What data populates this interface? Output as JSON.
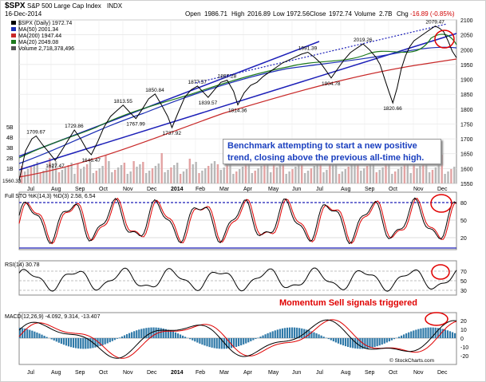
{
  "chart_data": {
    "type": "line",
    "symbol": "$SPX",
    "name": "S&P 500 Large Cap Index",
    "exchange": "INDX",
    "date": "16-Dec-2014",
    "ohlc": {
      "open_label": "Open",
      "open": "1986.71",
      "high_label": "High",
      "high": "2016.89",
      "low_label": "Low",
      "low": "1972.56",
      "close_label": "Close",
      "close": "1972.74",
      "volume_label": "Volume",
      "volume": "2.7B",
      "chg_label": "Chg",
      "chg": "-16.89 (-0.85%)"
    },
    "legend": [
      {
        "label": "$SPX (Daily) 1972.74",
        "color": "#000000"
      },
      {
        "label": "MA(50) 2001.34",
        "color": "#1c2fb5"
      },
      {
        "label": "MA(200) 1947.44",
        "color": "#c82828"
      },
      {
        "label": "MA(20) 2049.08",
        "color": "#1d7a1d"
      },
      {
        "label": "Volume 2,718,378,496",
        "color": "#555555"
      }
    ],
    "x_ticks": [
      "Jul",
      "Aug",
      "Sep",
      "Oct",
      "Nov",
      "Dec",
      "2014",
      "Feb",
      "Mar",
      "Apr",
      "May",
      "Jun",
      "Jul",
      "Aug",
      "Sep",
      "Oct",
      "Nov",
      "Dec"
    ],
    "y_range": [
      1550,
      2100
    ],
    "y_ticks": [
      "2100",
      "2050",
      "2000",
      "1950",
      "1900",
      "1850",
      "1800",
      "1750",
      "1700",
      "1650",
      "1600",
      "1550"
    ],
    "volume_ticks": [
      "5B",
      "4B",
      "3B",
      "2B",
      "1B"
    ],
    "price_series": [
      {
        "t": 0,
        "v": 1560.33
      },
      {
        "t": 6,
        "v": 1660
      },
      {
        "t": 12,
        "v": 1700
      },
      {
        "t": 16,
        "v": 1709.67
      },
      {
        "t": 22,
        "v": 1680
      },
      {
        "t": 28,
        "v": 1655
      },
      {
        "t": 34,
        "v": 1627.47
      },
      {
        "t": 40,
        "v": 1660
      },
      {
        "t": 46,
        "v": 1695
      },
      {
        "t": 52,
        "v": 1729.86
      },
      {
        "t": 58,
        "v": 1700
      },
      {
        "t": 64,
        "v": 1662
      },
      {
        "t": 68,
        "v": 1646.47
      },
      {
        "t": 74,
        "v": 1690
      },
      {
        "t": 80,
        "v": 1740
      },
      {
        "t": 86,
        "v": 1775
      },
      {
        "t": 92,
        "v": 1795
      },
      {
        "t": 98,
        "v": 1813.55
      },
      {
        "t": 104,
        "v": 1790
      },
      {
        "t": 110,
        "v": 1767.99
      },
      {
        "t": 116,
        "v": 1800
      },
      {
        "t": 122,
        "v": 1835
      },
      {
        "t": 128,
        "v": 1850.84
      },
      {
        "t": 134,
        "v": 1815
      },
      {
        "t": 140,
        "v": 1775
      },
      {
        "t": 144,
        "v": 1737.92
      },
      {
        "t": 150,
        "v": 1790
      },
      {
        "t": 156,
        "v": 1840
      },
      {
        "t": 162,
        "v": 1865
      },
      {
        "t": 168,
        "v": 1877.57
      },
      {
        "t": 174,
        "v": 1855
      },
      {
        "t": 178,
        "v": 1839.57
      },
      {
        "t": 184,
        "v": 1865
      },
      {
        "t": 190,
        "v": 1890
      },
      {
        "t": 196,
        "v": 1897.28
      },
      {
        "t": 202,
        "v": 1860
      },
      {
        "t": 206,
        "v": 1814.36
      },
      {
        "t": 212,
        "v": 1855
      },
      {
        "t": 218,
        "v": 1880
      },
      {
        "t": 224,
        "v": 1890
      },
      {
        "t": 230,
        "v": 1910
      },
      {
        "t": 236,
        "v": 1925
      },
      {
        "t": 242,
        "v": 1940
      },
      {
        "t": 248,
        "v": 1955
      },
      {
        "t": 254,
        "v": 1965
      },
      {
        "t": 260,
        "v": 1975
      },
      {
        "t": 266,
        "v": 1985
      },
      {
        "t": 272,
        "v": 1991.39
      },
      {
        "t": 278,
        "v": 1975
      },
      {
        "t": 284,
        "v": 1955
      },
      {
        "t": 290,
        "v": 1925
      },
      {
        "t": 294,
        "v": 1904.78
      },
      {
        "t": 300,
        "v": 1935
      },
      {
        "t": 306,
        "v": 1965
      },
      {
        "t": 312,
        "v": 1990
      },
      {
        "t": 318,
        "v": 2005
      },
      {
        "t": 324,
        "v": 2019.26
      },
      {
        "t": 330,
        "v": 2000
      },
      {
        "t": 336,
        "v": 1975
      },
      {
        "t": 340,
        "v": 1950
      },
      {
        "t": 344,
        "v": 1905
      },
      {
        "t": 348,
        "v": 1862
      },
      {
        "t": 352,
        "v": 1820.66
      },
      {
        "t": 356,
        "v": 1870
      },
      {
        "t": 360,
        "v": 1935
      },
      {
        "t": 364,
        "v": 1980
      },
      {
        "t": 368,
        "v": 2010
      },
      {
        "t": 372,
        "v": 2030
      },
      {
        "t": 376,
        "v": 2040
      },
      {
        "t": 380,
        "v": 2050
      },
      {
        "t": 384,
        "v": 2060
      },
      {
        "t": 388,
        "v": 2070
      },
      {
        "t": 392,
        "v": 2079.47
      },
      {
        "t": 396,
        "v": 2072
      },
      {
        "t": 400,
        "v": 2060
      },
      {
        "t": 404,
        "v": 2030
      },
      {
        "t": 408,
        "v": 1995
      },
      {
        "t": 412,
        "v": 1972.74
      }
    ],
    "price_labels": [
      "1709.67",
      "1627.47",
      "1729.86",
      "1646.47",
      "1813.55",
      "1767.99",
      "1850.84",
      "1737.92",
      "1877.57",
      "1839.57",
      "1897.28",
      "1814.36",
      "1991.39",
      "1904.78",
      "2019.26",
      "1820.66",
      "2079.47"
    ],
    "indicators": {
      "sto": {
        "label": "Full STO %K(14,3) %D(3) 2.58, 6.54",
        "ticks": [
          "80",
          "50",
          "20"
        ]
      },
      "rsi": {
        "label": "RSI(14) 30.78",
        "ticks": [
          "70",
          "50",
          "30"
        ]
      },
      "macd": {
        "label": "MACD(12,26,9) -4.092, 9.314, -13.407",
        "ticks": [
          "20",
          "10",
          "0",
          "-10",
          "-20"
        ]
      }
    },
    "annotations": {
      "trend_note": "Benchmark attempting to start a new positive trend, closing above the previous all-time high.",
      "momentum_note": "Momentum Sell signals triggered",
      "copyright": "© StockCharts.com"
    }
  }
}
